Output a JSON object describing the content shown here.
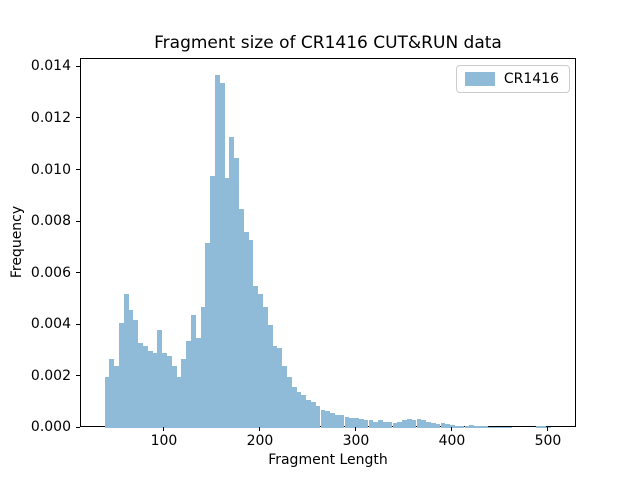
{
  "chart_data": {
    "type": "bar",
    "subtype": "histogram",
    "title": "Fragment size of CR1416 CUT&RUN data",
    "xlabel": "Fragment Length",
    "ylabel": "Frequency",
    "legend_entries": [
      "CR1416"
    ],
    "legend_position": "upper right",
    "bar_color": "#8fbbd9",
    "grid": "off",
    "bin_start": 37,
    "bin_width": 5,
    "xlim": [
      12.5,
      529.2
    ],
    "ylim": [
      0,
      0.014343
    ],
    "x_ticks": [
      "100",
      "200",
      "300",
      "400",
      "500"
    ],
    "y_ticks": [
      "0.000",
      "0.002",
      "0.004",
      "0.006",
      "0.008",
      "0.010",
      "0.012",
      "0.014"
    ],
    "frequencies": [
      0.002,
      0.0027,
      0.0024,
      0.0041,
      0.0052,
      0.0046,
      0.0042,
      0.0033,
      0.0032,
      0.003,
      0.0029,
      0.0038,
      0.0029,
      0.0028,
      0.0024,
      0.002,
      0.0027,
      0.0034,
      0.0044,
      0.0035,
      0.0047,
      0.0072,
      0.0098,
      0.0137,
      0.0134,
      0.0097,
      0.0113,
      0.0105,
      0.0085,
      0.0076,
      0.0073,
      0.0055,
      0.0052,
      0.0047,
      0.004,
      0.0032,
      0.0031,
      0.0024,
      0.002,
      0.0016,
      0.0014,
      0.0013,
      0.0011,
      0.001,
      0.00085,
      0.0007,
      0.00065,
      0.0006,
      0.0005,
      0.0005,
      0.00045,
      0.0004,
      0.0004,
      0.00035,
      0.0003,
      0.0003,
      0.00025,
      0.0003,
      0.00025,
      0.00025,
      0.0002,
      0.00025,
      0.0003,
      0.00035,
      0.0003,
      0.00035,
      0.0003,
      0.00025,
      0.0002,
      0.00015,
      0.0002,
      0.00015,
      0.00012,
      0.0001,
      0.0001,
      0.0001,
      0.00012,
      0.0001,
      8e-05,
      8e-05,
      6e-05,
      6e-05,
      5e-05,
      5e-05,
      4e-05,
      0,
      0,
      0,
      0,
      0,
      7e-05,
      7e-05,
      4e-05
    ]
  }
}
